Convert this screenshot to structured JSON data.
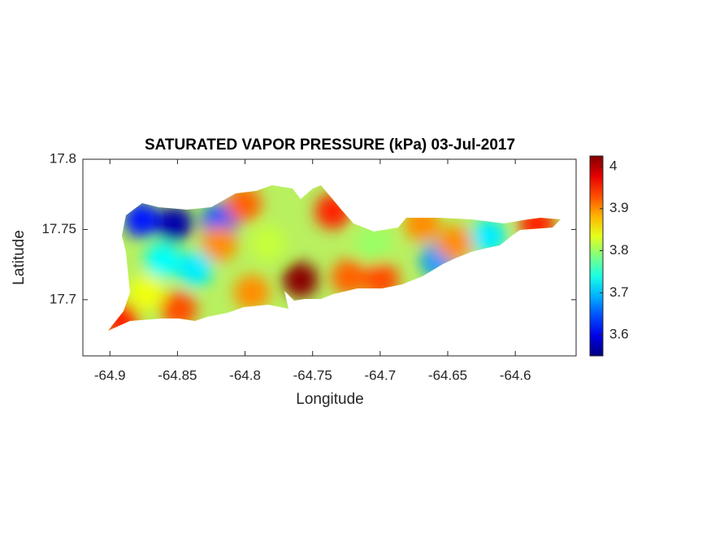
{
  "chart_data": {
    "type": "heatmap",
    "title": "SATURATED VAPOR PRESSURE (kPa) 03-Jul-2017",
    "xlabel": "Longitude",
    "ylabel": "Latitude",
    "xlim": [
      -64.92,
      -64.555
    ],
    "ylim": [
      17.66,
      17.8
    ],
    "xticks": [
      -64.9,
      -64.85,
      -64.8,
      -64.75,
      -64.7,
      -64.65,
      -64.6
    ],
    "yticks": [
      17.7,
      17.75,
      17.8
    ],
    "clim": [
      3.55,
      4.025
    ],
    "cticks": [
      3.6,
      3.7,
      3.8,
      3.9,
      4
    ],
    "colormap": "jet",
    "points": [
      {
        "lon": -64.852,
        "lat": 17.754,
        "value": 3.57
      },
      {
        "lon": -64.8765,
        "lat": 17.757,
        "value": 3.62
      },
      {
        "lon": -64.819,
        "lat": 17.756,
        "value": 3.65
      },
      {
        "lon": -64.837,
        "lat": 17.722,
        "value": 3.72
      },
      {
        "lon": -64.861,
        "lat": 17.728,
        "value": 3.73
      },
      {
        "lon": -64.759,
        "lat": 17.714,
        "value": 4.02
      },
      {
        "lon": -64.801,
        "lat": 17.768,
        "value": 3.92
      },
      {
        "lon": -64.735,
        "lat": 17.763,
        "value": 3.95
      },
      {
        "lon": -64.819,
        "lat": 17.74,
        "value": 3.9
      },
      {
        "lon": -64.849,
        "lat": 17.693,
        "value": 3.93
      },
      {
        "lon": -64.892,
        "lat": 17.685,
        "value": 3.95
      },
      {
        "lon": -64.699,
        "lat": 17.714,
        "value": 3.93
      },
      {
        "lon": -64.723,
        "lat": 17.716,
        "value": 3.92
      },
      {
        "lon": -64.657,
        "lat": 17.728,
        "value": 3.68
      },
      {
        "lon": -64.62,
        "lat": 17.745,
        "value": 3.72
      },
      {
        "lon": -64.645,
        "lat": 17.74,
        "value": 3.9
      },
      {
        "lon": -64.584,
        "lat": 17.754,
        "value": 3.95
      },
      {
        "lon": -64.669,
        "lat": 17.754,
        "value": 3.9
      },
      {
        "lon": -64.705,
        "lat": 17.74,
        "value": 3.8
      },
      {
        "lon": -64.783,
        "lat": 17.74,
        "value": 3.82
      },
      {
        "lon": -64.873,
        "lat": 17.705,
        "value": 3.84
      },
      {
        "lon": -64.795,
        "lat": 17.705,
        "value": 3.9
      }
    ]
  }
}
